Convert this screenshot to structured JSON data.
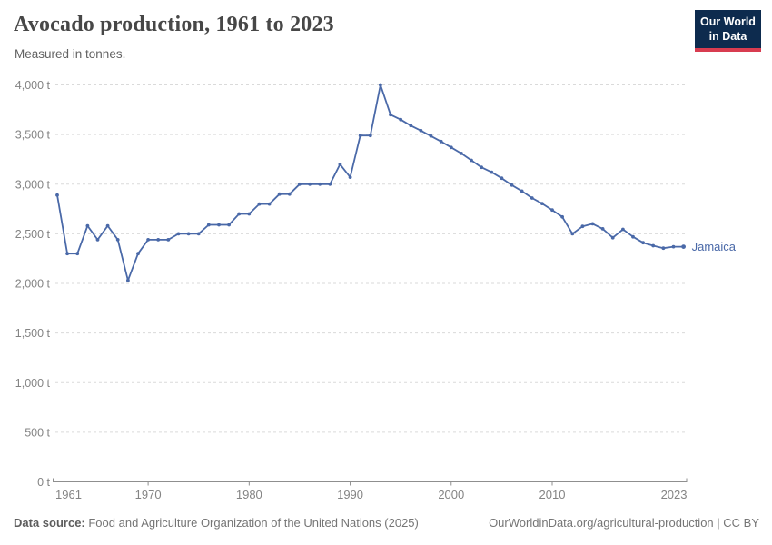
{
  "logo": {
    "line1": "Our World",
    "line2": "in Data",
    "bg_color": "#0d2b4e",
    "accent_color": "#d83c50"
  },
  "footer": {
    "datasource_label": "Data source:",
    "datasource_text": " Food and Agriculture Organization of the United Nations (2025)",
    "link_text": "OurWorldinData.org/agricultural-production | CC BY"
  },
  "chart_data": {
    "type": "line",
    "title": "Avocado production, 1961 to 2023",
    "subtitle": "Measured in tonnes.",
    "unit": "t",
    "legend_position": "end-of-line-label",
    "grid": "dashed-horizontal",
    "x_range": [
      1961,
      2023
    ],
    "ylim": [
      0,
      4000
    ],
    "x": [
      1961,
      1962,
      1963,
      1964,
      1965,
      1966,
      1967,
      1968,
      1969,
      1970,
      1971,
      1972,
      1973,
      1974,
      1975,
      1976,
      1977,
      1978,
      1979,
      1980,
      1981,
      1982,
      1983,
      1984,
      1985,
      1986,
      1987,
      1988,
      1989,
      1990,
      1991,
      1992,
      1993,
      1994,
      1995,
      1996,
      1997,
      1998,
      1999,
      2000,
      2001,
      2002,
      2003,
      2004,
      2005,
      2006,
      2007,
      2008,
      2009,
      2010,
      2011,
      2012,
      2013,
      2014,
      2015,
      2016,
      2017,
      2018,
      2019,
      2020,
      2021,
      2022,
      2023
    ],
    "series": [
      {
        "name": "Jamaica",
        "values": [
          2890,
          2300,
          2300,
          2580,
          2440,
          2580,
          2440,
          2030,
          2300,
          2440,
          2440,
          2440,
          2500,
          2500,
          2500,
          2590,
          2590,
          2590,
          2700,
          2700,
          2800,
          2800,
          2900,
          2900,
          3000,
          3000,
          3000,
          3000,
          3200,
          3070,
          3490,
          3490,
          4000,
          3700,
          3650,
          3590,
          3540,
          3485,
          3430,
          3370,
          3310,
          3240,
          3170,
          3120,
          3060,
          2990,
          2930,
          2860,
          2805,
          2740,
          2670,
          2500,
          2575,
          2600,
          2550,
          2460,
          2545,
          2470,
          2410,
          2380,
          2355,
          2370,
          2370
        ]
      }
    ],
    "yticks": [
      {
        "v": 0,
        "label": "0 t"
      },
      {
        "v": 500,
        "label": "500 t"
      },
      {
        "v": 1000,
        "label": "1,000 t"
      },
      {
        "v": 1500,
        "label": "1,500 t"
      },
      {
        "v": 2000,
        "label": "2,000 t"
      },
      {
        "v": 2500,
        "label": "2,500 t"
      },
      {
        "v": 3000,
        "label": "3,000 t"
      },
      {
        "v": 3500,
        "label": "3,500 t"
      },
      {
        "v": 4000,
        "label": "4,000 t"
      }
    ],
    "xticks": [
      {
        "year": 1961,
        "label": "1961"
      },
      {
        "year": 1970,
        "label": "1970"
      },
      {
        "year": 1980,
        "label": "1980"
      },
      {
        "year": 1990,
        "label": "1990"
      },
      {
        "year": 2000,
        "label": "2000"
      },
      {
        "year": 2010,
        "label": "2010"
      },
      {
        "year": 2023,
        "label": "2023"
      }
    ],
    "colors": {
      "line": "#4a69a8",
      "grid": "#dadada",
      "axis": "#8f8f8f",
      "tick_text": "#848484"
    }
  }
}
